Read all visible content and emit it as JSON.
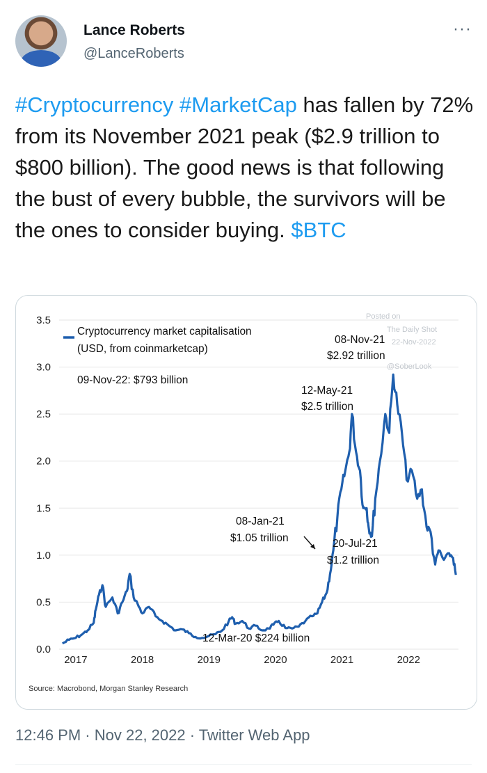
{
  "author": {
    "display_name": "Lance Roberts",
    "handle": "@LanceRoberts"
  },
  "more_icon": "···",
  "tweet": {
    "hashtag1": "#Cryptocurrency",
    "hashtag2": "#MarketCap",
    "body_part1": " has fallen by 72% from its November 2021 peak ($2.9 trillion to $800 billion). The good news is that following the bust of every bubble, the survivors will be the ones to consider buying. ",
    "cashtag": "$BTC"
  },
  "meta": {
    "time": "12:46 PM",
    "separator1": " · ",
    "date": "Nov 22, 2022",
    "separator2": " · ",
    "client": "Twitter Web App"
  },
  "chart_data": {
    "type": "line",
    "legend": "Cryptocurrency market capitalisation",
    "legend_sub": "(USD, from coinmarketcap)",
    "note": "09-Nov-22: $793 billion",
    "watermark_line1": "Posted on",
    "watermark_line2": "The Daily Shot",
    "watermark_line3": "22-Nov-2022",
    "watermark_line4": "@SoberLook",
    "source": "Source: Macrobond, Morgan Stanley Research",
    "y_ticks": [
      "3.5",
      "3.0",
      "2.5",
      "2.0",
      "1.5",
      "1.0",
      "0.5",
      "0.0"
    ],
    "x_ticks": [
      "2017",
      "2018",
      "2019",
      "2020",
      "2021",
      "2022"
    ],
    "ylim": [
      0,
      3.5
    ],
    "line_color": "#1f5fae",
    "annotations": [
      {
        "label1": "08-Nov-21",
        "label2": "$2.92 trillion"
      },
      {
        "label1": "12-May-21",
        "label2": "$2.5 trillion"
      },
      {
        "label1": "08-Jan-21",
        "label2": "$1.05 trillion"
      },
      {
        "label1": "20-Jul-21",
        "label2": "$1.2 trillion"
      },
      {
        "label1": "12-Mar-20 $224 billion"
      }
    ],
    "series": [
      {
        "x": [
          2016.95,
          2017.05,
          2017.15,
          2017.25,
          2017.33,
          2017.42,
          2017.45,
          2017.5,
          2017.55,
          2017.6,
          2017.7,
          2017.78,
          2017.85,
          2017.92,
          2017.96,
          2018.02,
          2018.08,
          2018.15,
          2018.25,
          2018.35,
          2018.45,
          2018.55,
          2018.65,
          2018.75,
          2018.85,
          2018.95,
          2019.05,
          2019.15,
          2019.25,
          2019.35,
          2019.45,
          2019.5,
          2019.55,
          2019.65,
          2019.75,
          2019.85,
          2019.95,
          2020.05,
          2020.12,
          2020.2,
          2020.3,
          2020.4,
          2020.5,
          2020.6,
          2020.7,
          2020.78,
          2020.85,
          2020.92,
          2020.97,
          2021.02,
          2021.08,
          2021.14,
          2021.2,
          2021.26,
          2021.3,
          2021.36,
          2021.42,
          2021.47,
          2021.52,
          2021.55,
          2021.6,
          2021.65,
          2021.72,
          2021.8,
          2021.86,
          2021.92,
          2021.98,
          2022.05,
          2022.12,
          2022.2,
          2022.28,
          2022.35,
          2022.42,
          2022.48,
          2022.55,
          2022.6,
          2022.68,
          2022.76,
          2022.82,
          2022.86
        ],
        "y": [
          0.06,
          0.1,
          0.12,
          0.16,
          0.2,
          0.28,
          0.42,
          0.58,
          0.68,
          0.45,
          0.55,
          0.38,
          0.5,
          0.62,
          0.8,
          0.55,
          0.48,
          0.38,
          0.45,
          0.35,
          0.3,
          0.25,
          0.2,
          0.21,
          0.17,
          0.13,
          0.12,
          0.14,
          0.16,
          0.2,
          0.3,
          0.34,
          0.27,
          0.3,
          0.22,
          0.25,
          0.2,
          0.22,
          0.26,
          0.3,
          0.224,
          0.22,
          0.24,
          0.3,
          0.35,
          0.38,
          0.5,
          0.6,
          0.8,
          1.05,
          1.4,
          1.7,
          1.9,
          2.1,
          2.5,
          2.1,
          1.9,
          1.5,
          1.5,
          1.3,
          1.2,
          1.6,
          2.0,
          2.5,
          2.3,
          2.92,
          2.6,
          2.3,
          1.8,
          1.9,
          1.6,
          1.7,
          1.3,
          1.25,
          0.9,
          1.05,
          0.95,
          1.02,
          0.97,
          0.79
        ]
      }
    ]
  }
}
